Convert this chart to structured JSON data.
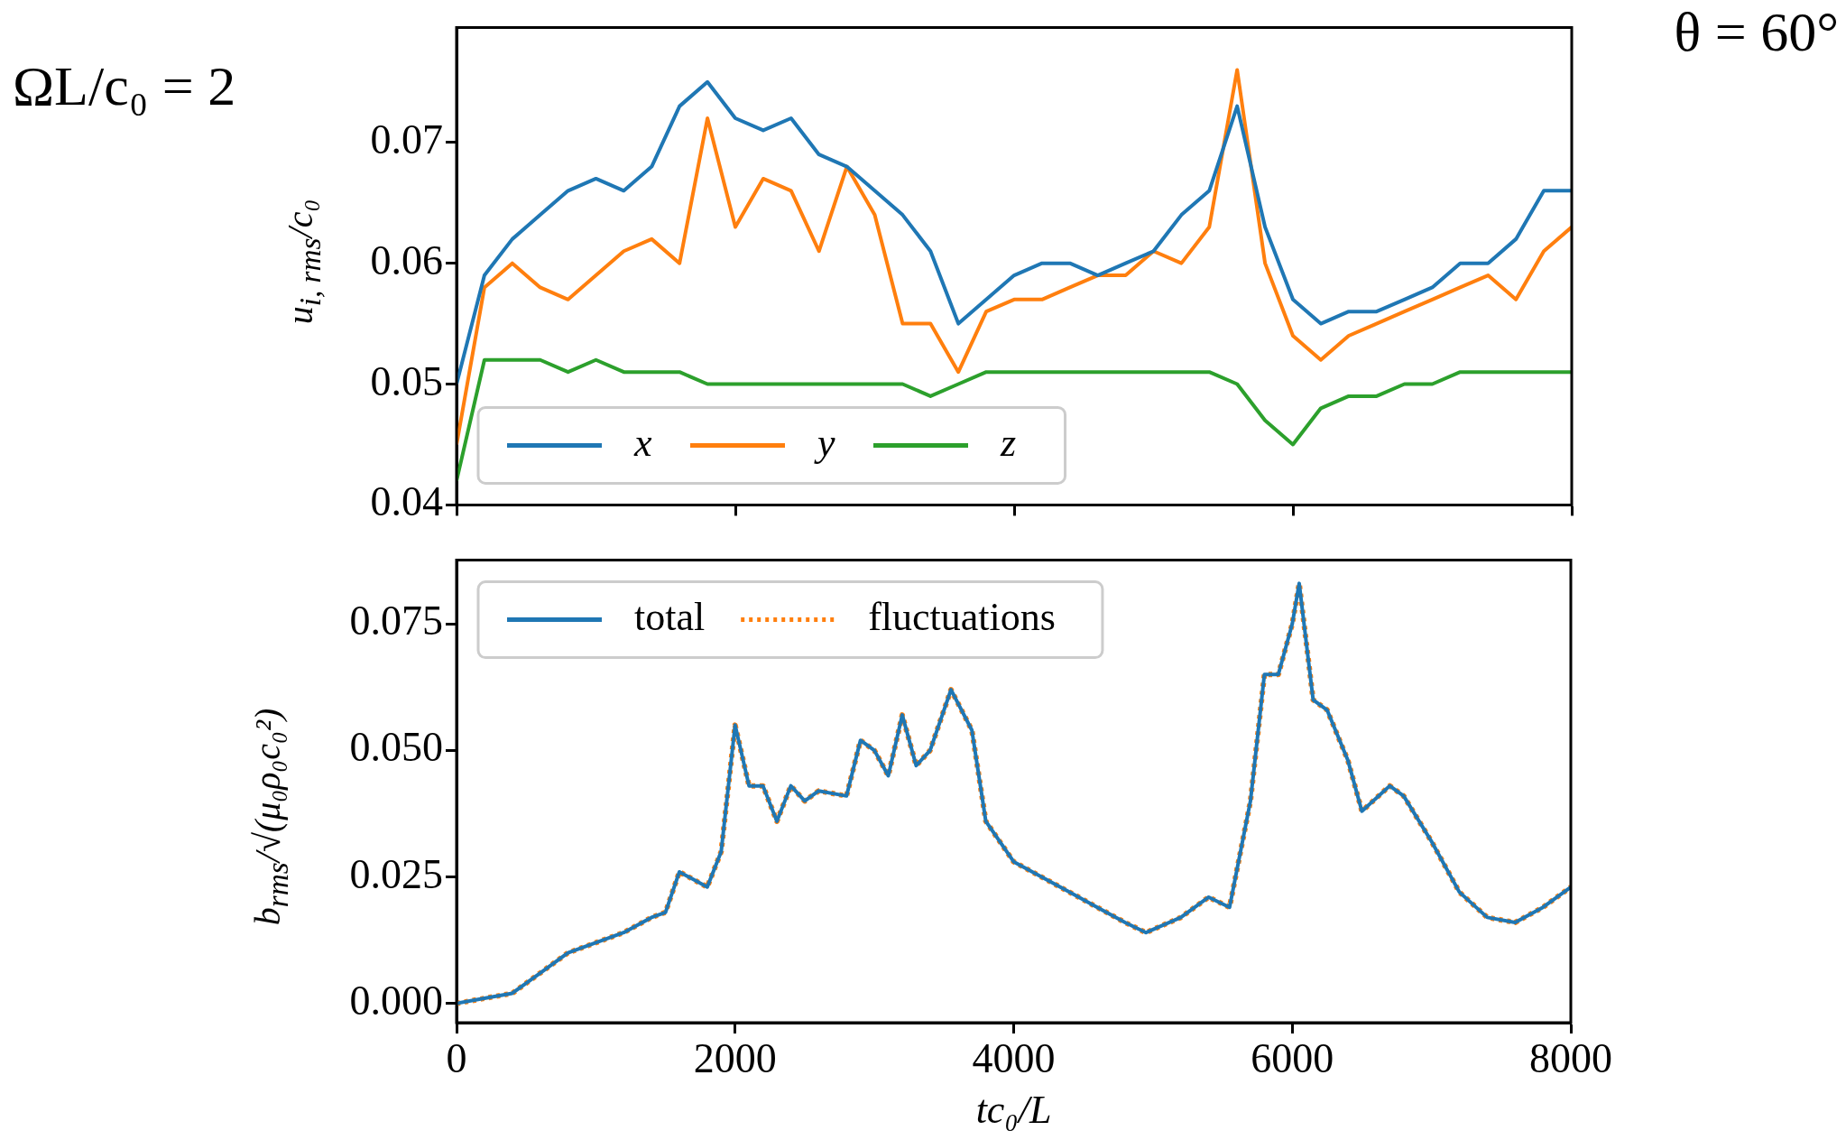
{
  "chart_data": [
    {
      "type": "line",
      "ylabel": "u$_{i, rms}$/c₀",
      "annotations": [
        "ΩL/c₀ = 2",
        "θ = 60°"
      ],
      "x": [
        0,
        200,
        400,
        600,
        800,
        1000,
        1200,
        1400,
        1600,
        1800,
        2000,
        2200,
        2400,
        2600,
        2800,
        3000,
        3200,
        3400,
        3600,
        3800,
        4000,
        4200,
        4400,
        4600,
        4800,
        5000,
        5200,
        5400,
        5600,
        5800,
        6000,
        6200,
        6400,
        6600,
        6800,
        7000,
        7200,
        7400,
        7600,
        7800,
        8000
      ],
      "series": [
        {
          "name": "x",
          "color": "#1f77b4",
          "values": [
            0.05,
            0.059,
            0.062,
            0.064,
            0.066,
            0.067,
            0.066,
            0.068,
            0.073,
            0.075,
            0.072,
            0.071,
            0.072,
            0.069,
            0.068,
            0.066,
            0.064,
            0.061,
            0.055,
            0.057,
            0.059,
            0.06,
            0.06,
            0.059,
            0.06,
            0.061,
            0.064,
            0.066,
            0.073,
            0.063,
            0.057,
            0.055,
            0.056,
            0.056,
            0.057,
            0.058,
            0.06,
            0.06,
            0.062,
            0.066,
            0.066
          ]
        },
        {
          "name": "y",
          "color": "#ff7f0e",
          "values": [
            0.045,
            0.058,
            0.06,
            0.058,
            0.057,
            0.059,
            0.061,
            0.062,
            0.06,
            0.072,
            0.063,
            0.067,
            0.066,
            0.061,
            0.068,
            0.064,
            0.055,
            0.055,
            0.051,
            0.056,
            0.057,
            0.057,
            0.058,
            0.059,
            0.059,
            0.061,
            0.06,
            0.063,
            0.076,
            0.06,
            0.054,
            0.052,
            0.054,
            0.055,
            0.056,
            0.057,
            0.058,
            0.059,
            0.057,
            0.061,
            0.063
          ]
        },
        {
          "name": "z",
          "color": "#2ca02c",
          "values": [
            0.042,
            0.052,
            0.052,
            0.052,
            0.051,
            0.052,
            0.051,
            0.051,
            0.051,
            0.05,
            0.05,
            0.05,
            0.05,
            0.05,
            0.05,
            0.05,
            0.05,
            0.049,
            0.05,
            0.051,
            0.051,
            0.051,
            0.051,
            0.051,
            0.051,
            0.051,
            0.051,
            0.051,
            0.05,
            0.047,
            0.045,
            0.048,
            0.049,
            0.049,
            0.05,
            0.05,
            0.051,
            0.051,
            0.051,
            0.051,
            0.051
          ]
        }
      ],
      "xlim": [
        0,
        8000
      ],
      "xticks": [
        0,
        2000,
        4000,
        6000,
        8000
      ],
      "ylim": [
        0.04,
        0.0795
      ],
      "yticks": [
        0.04,
        0.05,
        0.06,
        0.07
      ],
      "tick_labels": "y",
      "legend": "bottom left",
      "line_style": "solid"
    },
    {
      "type": "line",
      "xlabel": "tc₀/L",
      "ylabel": "b$_{rms}$/√(μ₀ρ₀c₀²)",
      "x": [
        0,
        200,
        400,
        600,
        800,
        1000,
        1200,
        1400,
        1500,
        1600,
        1800,
        1900,
        2000,
        2100,
        2200,
        2300,
        2400,
        2500,
        2600,
        2800,
        2900,
        3000,
        3100,
        3200,
        3300,
        3400,
        3550,
        3700,
        3800,
        4000,
        4200,
        4400,
        4600,
        4800,
        4950,
        5200,
        5400,
        5550,
        5700,
        5800,
        5900,
        6000,
        6050,
        6150,
        6250,
        6400,
        6500,
        6700,
        6800,
        7000,
        7200,
        7400,
        7600,
        7800,
        8000
      ],
      "series": [
        {
          "name": "total",
          "color": "#1f77b4",
          "line_style": "solid",
          "values": [
            0.0,
            0.001,
            0.002,
            0.006,
            0.01,
            0.012,
            0.014,
            0.017,
            0.018,
            0.026,
            0.023,
            0.03,
            0.055,
            0.043,
            0.043,
            0.036,
            0.043,
            0.04,
            0.042,
            0.041,
            0.052,
            0.05,
            0.045,
            0.057,
            0.047,
            0.05,
            0.062,
            0.054,
            0.036,
            0.028,
            0.025,
            0.022,
            0.019,
            0.016,
            0.014,
            0.017,
            0.021,
            0.019,
            0.04,
            0.065,
            0.065,
            0.075,
            0.083,
            0.06,
            0.058,
            0.048,
            0.038,
            0.043,
            0.041,
            0.032,
            0.022,
            0.017,
            0.016,
            0.019,
            0.023
          ]
        },
        {
          "name": "fluctuations",
          "color": "#ff7f0e",
          "line_style": "dotted",
          "values": [
            0.0,
            0.001,
            0.002,
            0.006,
            0.01,
            0.012,
            0.014,
            0.017,
            0.018,
            0.026,
            0.023,
            0.03,
            0.055,
            0.043,
            0.043,
            0.036,
            0.043,
            0.04,
            0.042,
            0.041,
            0.052,
            0.05,
            0.045,
            0.057,
            0.047,
            0.05,
            0.062,
            0.054,
            0.036,
            0.028,
            0.025,
            0.022,
            0.019,
            0.016,
            0.014,
            0.017,
            0.021,
            0.019,
            0.04,
            0.065,
            0.065,
            0.075,
            0.083,
            0.06,
            0.058,
            0.048,
            0.038,
            0.043,
            0.041,
            0.032,
            0.022,
            0.017,
            0.016,
            0.019,
            0.023
          ]
        }
      ],
      "xlim": [
        0,
        8000
      ],
      "xticks": [
        0,
        2000,
        4000,
        6000,
        8000
      ],
      "ylim": [
        -0.0038,
        0.0876
      ],
      "yticks": [
        {
          "value": 0,
          "label": "0.000"
        },
        0.025,
        {
          "value": 0.05,
          "label": "0.050"
        },
        0.075
      ],
      "legend": "top left"
    }
  ]
}
